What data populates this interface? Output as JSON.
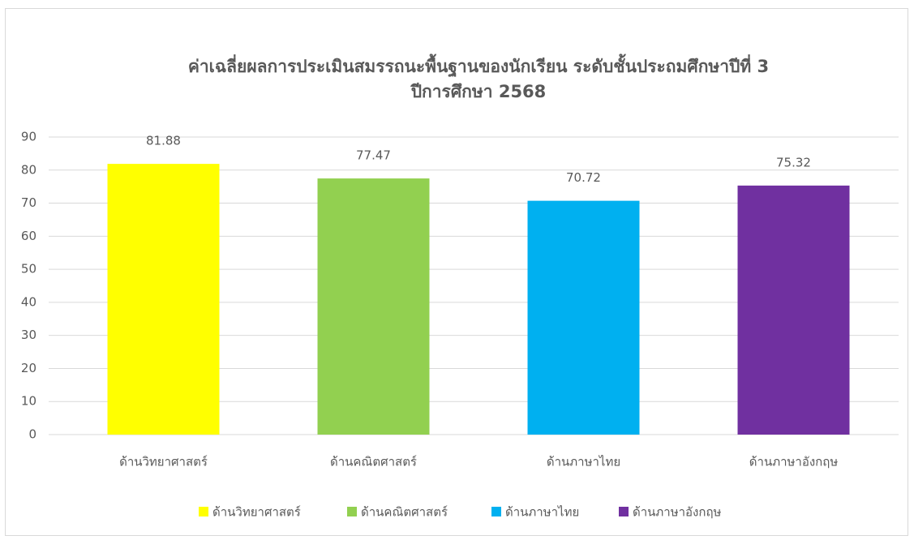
{
  "chart_data": {
    "type": "bar",
    "title": [
      "ค่าเฉลี่ยผลการประเมินสมรรถนะพื้นฐานของนักเรียน ระดับชั้นประถมศึกษาปีที่ 3",
      "ปีการศึกษา 2568"
    ],
    "categories": [
      "ด้านวิทยาศาสตร์",
      "ด้านคณิตศาสตร์",
      "ด้านภาษาไทย",
      "ด้านภาษาอังกฤษ"
    ],
    "values": [
      81.88,
      77.47,
      70.72,
      75.32
    ],
    "colors": [
      "#ffff00",
      "#92d050",
      "#00b0f0",
      "#7030a0"
    ],
    "ylim": [
      0,
      90
    ],
    "yticks": [
      0,
      10,
      20,
      30,
      40,
      50,
      60,
      70,
      80,
      90
    ],
    "grid": true,
    "legend": "bottom"
  }
}
